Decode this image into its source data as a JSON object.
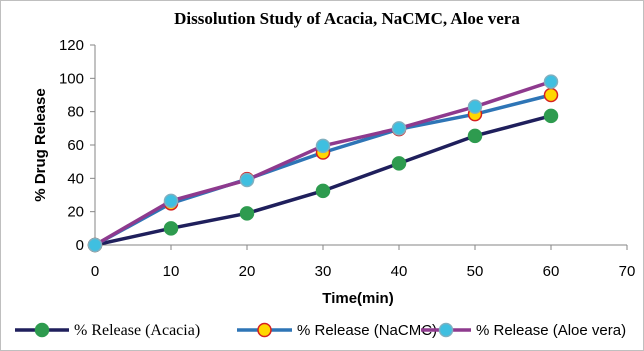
{
  "chart_data": {
    "type": "line",
    "title": "Dissolution Study of Acacia, NaCMC, Aloe vera",
    "xlabel": "Time(min)",
    "ylabel": "% Drug Release",
    "xlim": [
      0,
      70
    ],
    "ylim": [
      0,
      120
    ],
    "xticks": [
      0,
      10,
      20,
      30,
      40,
      50,
      60,
      70
    ],
    "yticks": [
      0,
      20,
      40,
      60,
      80,
      100,
      120
    ],
    "grid": false,
    "legend_position": "bottom",
    "x": [
      0,
      10,
      20,
      30,
      40,
      50,
      60
    ],
    "series": [
      {
        "name": "% Release (Acacia)",
        "values": [
          0,
          10,
          19,
          32.5,
          49,
          65.5,
          77.5
        ],
        "line_color": "#1f1f5c",
        "marker_color": "#2e9b4f",
        "marker_edge": "#2e9b4f"
      },
      {
        "name": "% Release (NaCMC)",
        "values": [
          0,
          25,
          39.5,
          55.5,
          69.5,
          78.5,
          90
        ],
        "line_color": "#2e75b6",
        "marker_color": "#ffd700",
        "marker_edge": "#d62020"
      },
      {
        "name": "% Release (Aloe vera)",
        "values": [
          0,
          26.5,
          39,
          59.5,
          70,
          83,
          98
        ],
        "line_color": "#8e3a8e",
        "marker_color": "#3fbfe0",
        "marker_edge": "#7fb0c0"
      }
    ]
  }
}
